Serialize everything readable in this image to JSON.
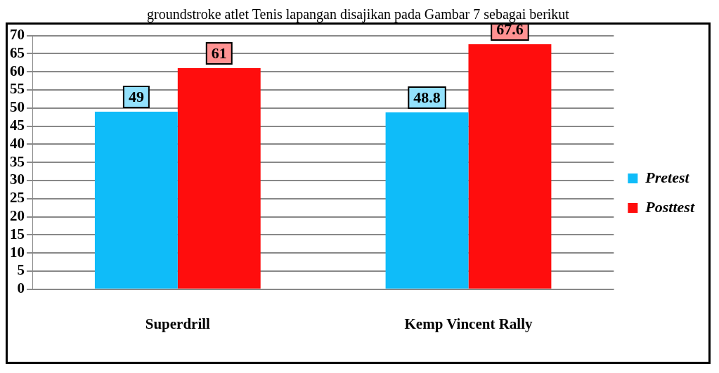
{
  "chart_data": {
    "type": "bar",
    "categories": [
      "Superdrill",
      "Kemp Vincent Rally"
    ],
    "series": [
      {
        "name": "Pretest",
        "color": "#0fbcf9",
        "values": [
          49,
          48.8
        ]
      },
      {
        "name": "Posttest",
        "color": "#ff0d0d",
        "values": [
          61,
          67.6
        ]
      }
    ],
    "ylim": [
      0,
      70
    ],
    "yticks": [
      0,
      5,
      10,
      15,
      20,
      25,
      30,
      35,
      40,
      45,
      50,
      55,
      60,
      65,
      70
    ],
    "grid": "y",
    "legend": "right",
    "data_labels": true,
    "annotations": [
      "groundstroke atlet Tenis lapangan disajikan pada Gambar 7 sebagai berikut"
    ]
  }
}
